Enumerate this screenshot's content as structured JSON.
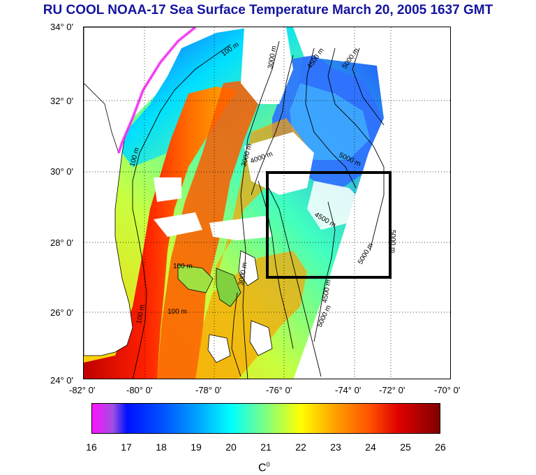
{
  "title": "RU COOL  NOAA-17 Sea Surface Temperature March 20, 2005 1637 GMT",
  "y_axis_labels": [
    "34° 0'",
    "32° 0'",
    "30° 0'",
    "28° 0'",
    "26° 0'",
    "24° 0'"
  ],
  "x_axis_labels": [
    "-82° 0'",
    "-80° 0'",
    "-78° 0'",
    "-76° 0'",
    "-74° 0'",
    "-72° 0'",
    "-70° 0'"
  ],
  "contour_labels": {
    "c100a": "100 m",
    "c100b": "100 m",
    "c100c": "100 m",
    "c100d": "100 m",
    "c100e": "100 m",
    "c3000a": "3000 m",
    "c3000b": "3000 m",
    "c3000c": "3000 m",
    "c4000a": "4000 m",
    "c4500a": "4500 m",
    "c4500b": "4500 m",
    "c4500c": "4500 m",
    "c5000a": "5000 m",
    "c5000b": "5000 m",
    "c5000c": "5000 m",
    "c5000d": "5000 m",
    "c5000e": "5000 m"
  },
  "colorbar": {
    "ticks": [
      "16",
      "17",
      "18",
      "19",
      "20",
      "21",
      "22",
      "23",
      "24",
      "25",
      "26"
    ],
    "unit": "C",
    "unit_sup": "0"
  },
  "colors": {
    "title": "#1414a0",
    "box": "#000000"
  }
}
